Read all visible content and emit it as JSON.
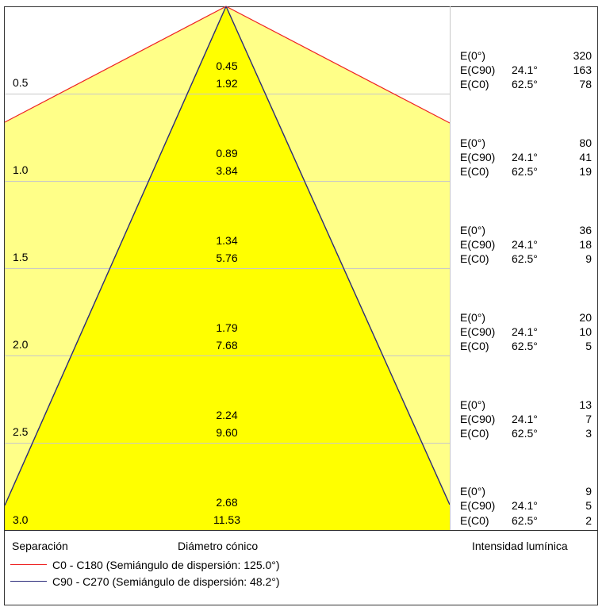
{
  "diagram": {
    "rows": [
      {
        "separation": "0.5",
        "cone_radius": "0.45",
        "cone_diameter": "1.92",
        "E0": "320",
        "E_c90": "163",
        "E_c0": "78"
      },
      {
        "separation": "1.0",
        "cone_radius": "0.89",
        "cone_diameter": "3.84",
        "E0": "80",
        "E_c90": "41",
        "E_c0": "19"
      },
      {
        "separation": "1.5",
        "cone_radius": "1.34",
        "cone_diameter": "5.76",
        "E0": "36",
        "E_c90": "18",
        "E_c0": "9"
      },
      {
        "separation": "2.0",
        "cone_radius": "1.79",
        "cone_diameter": "7.68",
        "E0": "20",
        "E_c90": "10",
        "E_c0": "5"
      },
      {
        "separation": "2.5",
        "cone_radius": "2.24",
        "cone_diameter": "9.60",
        "E0": "13",
        "E_c90": "7",
        "E_c0": "3"
      },
      {
        "separation": "3.0",
        "cone_radius": "2.68",
        "cone_diameter": "11.53",
        "E0": "9",
        "E_c90": "5",
        "E_c0": "2"
      }
    ],
    "labels": {
      "e0": "E(0°)",
      "e_c90": "E(C90)",
      "e_c0": "E(C0)",
      "angle_c90": "24.1°",
      "angle_c0": "62.5°"
    },
    "columns": {
      "separation": "Separación",
      "diameter": "Diámetro cónico",
      "intensity": "Intensidad lumínica"
    },
    "legend": [
      {
        "text": "C0 - C180 (Semiángulo de dispersión: 125.0°)",
        "color": "#ee2222"
      },
      {
        "text": "C90 - C270 (Semiángulo de dispersión: 48.2°)",
        "color": "#2a2a7a"
      }
    ],
    "colors": {
      "outer_fill": "#ffff88",
      "inner_fill": "#ffff00",
      "grid": "#c8c8c8",
      "c0_line": "#ee2222",
      "c90_line": "#2a2a7a"
    }
  }
}
